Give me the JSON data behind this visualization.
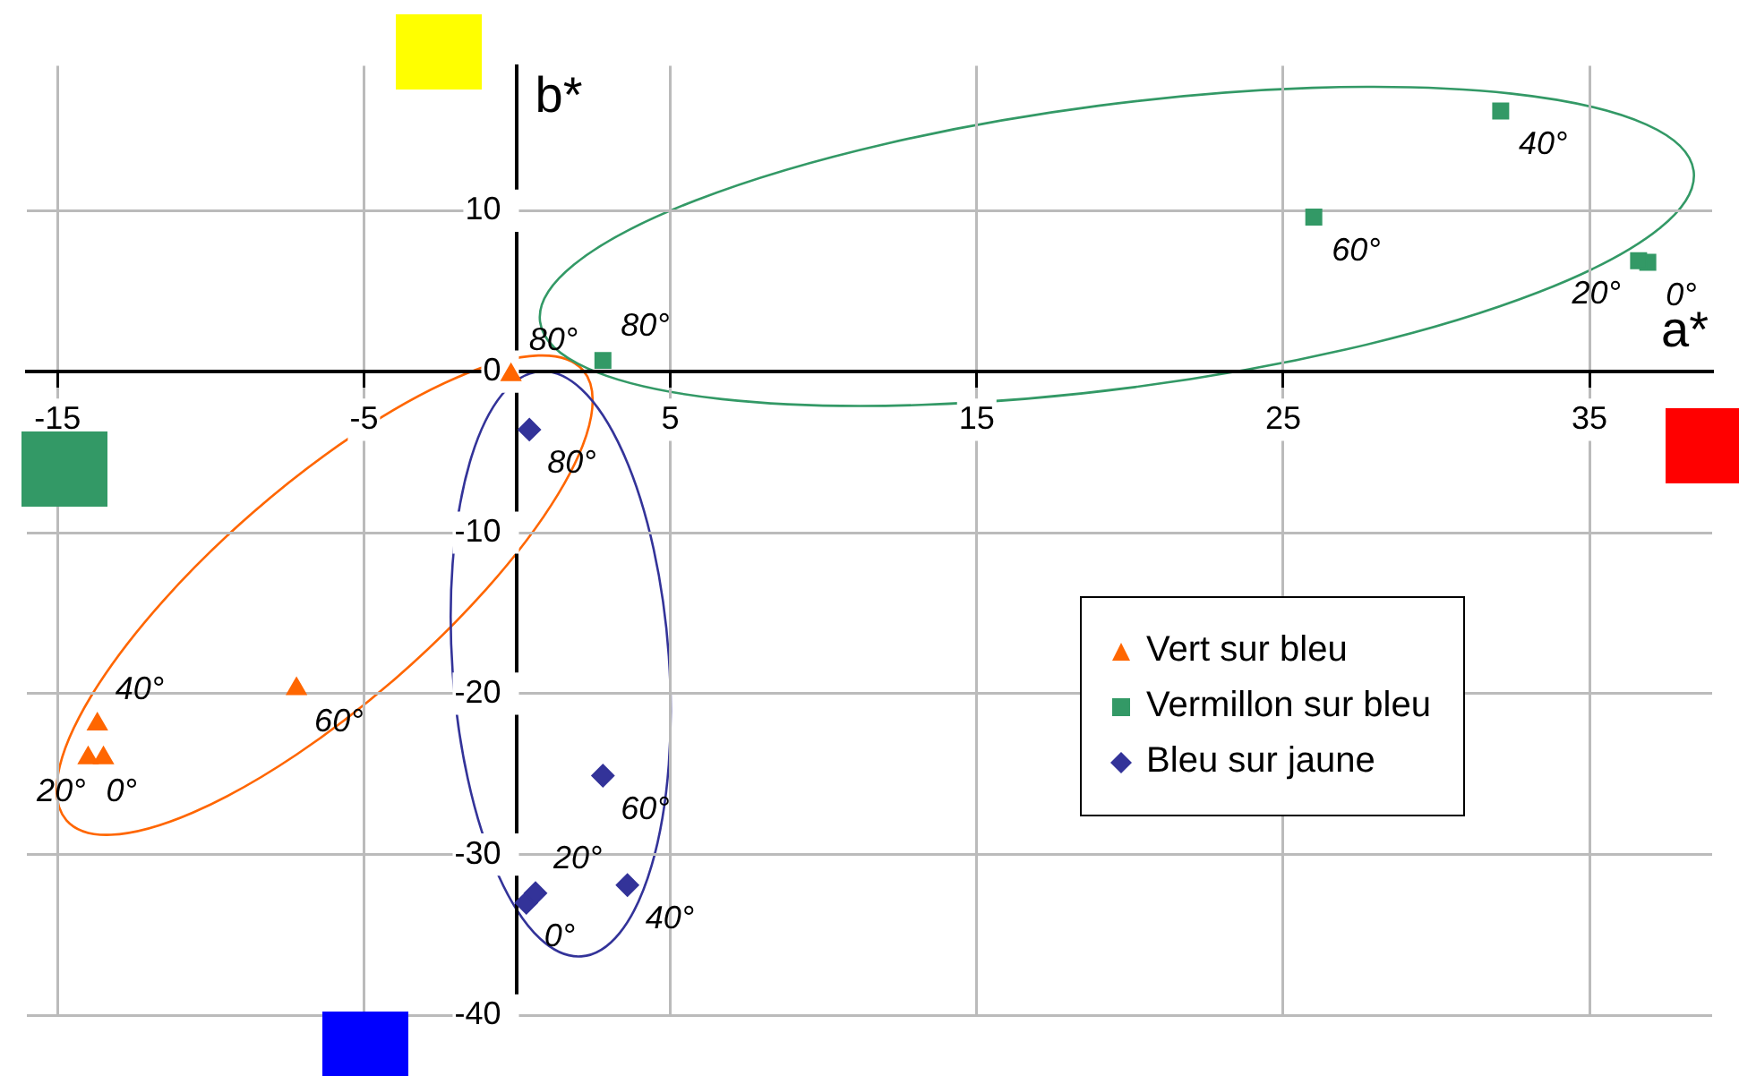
{
  "chart_data": {
    "type": "scatter",
    "xlabel": "a*",
    "ylabel": "b*",
    "xlim": [
      -16,
      39
    ],
    "ylim": [
      -40,
      19
    ],
    "xticks": [
      -15,
      -5,
      5,
      15,
      25,
      35
    ],
    "yticks": [
      10,
      0,
      -10,
      -20,
      -30,
      -40
    ],
    "grid": true,
    "legend": "right",
    "series": [
      {
        "name": "Vert sur bleu",
        "color": "#ff6600",
        "marker": "triangle",
        "x": [
          -14.0,
          -13.5,
          -13.7,
          -7.2,
          -0.2
        ],
        "values": [
          -24.0,
          -24.0,
          -21.9,
          -19.7,
          -0.2
        ]
      },
      {
        "name": "Vermillon sur bleu",
        "color": "#339966",
        "marker": "square",
        "x": [
          36.9,
          36.6,
          32.1,
          26.0,
          2.8
        ],
        "values": [
          6.8,
          6.9,
          16.2,
          9.6,
          0.7
        ]
      },
      {
        "name": "Bleu sur jaune",
        "color": "#333399",
        "marker": "diamond",
        "x": [
          0.3,
          0.6,
          3.6,
          2.8,
          0.4
        ],
        "values": [
          -33.0,
          -32.4,
          -31.9,
          -25.1,
          -3.6
        ]
      }
    ],
    "annotations": [
      {
        "text": "0°",
        "x": -14.0,
        "y": -24.0
      },
      {
        "text": "20°",
        "x": -13.5,
        "y": -24.0
      },
      {
        "text": "40°",
        "x": -13.7,
        "y": -21.9
      },
      {
        "text": "60°",
        "x": -7.2,
        "y": -19.7
      },
      {
        "text": "80°",
        "x": -0.2,
        "y": -0.2
      },
      {
        "text": "0°",
        "x": 36.9,
        "y": 6.8
      },
      {
        "text": "20°",
        "x": 36.6,
        "y": 6.9
      },
      {
        "text": "40°",
        "x": 32.1,
        "y": 16.2
      },
      {
        "text": "60°",
        "x": 26.0,
        "y": 9.6
      },
      {
        "text": "80°",
        "x": 2.8,
        "y": 0.7
      },
      {
        "text": "0°",
        "x": 0.3,
        "y": -33.0
      },
      {
        "text": "20°",
        "x": 0.6,
        "y": -32.4
      },
      {
        "text": "40°",
        "x": 3.6,
        "y": -31.9
      },
      {
        "text": "60°",
        "x": 2.8,
        "y": -25.1
      },
      {
        "text": "80°",
        "x": 0.4,
        "y": -3.6
      }
    ]
  }
}
